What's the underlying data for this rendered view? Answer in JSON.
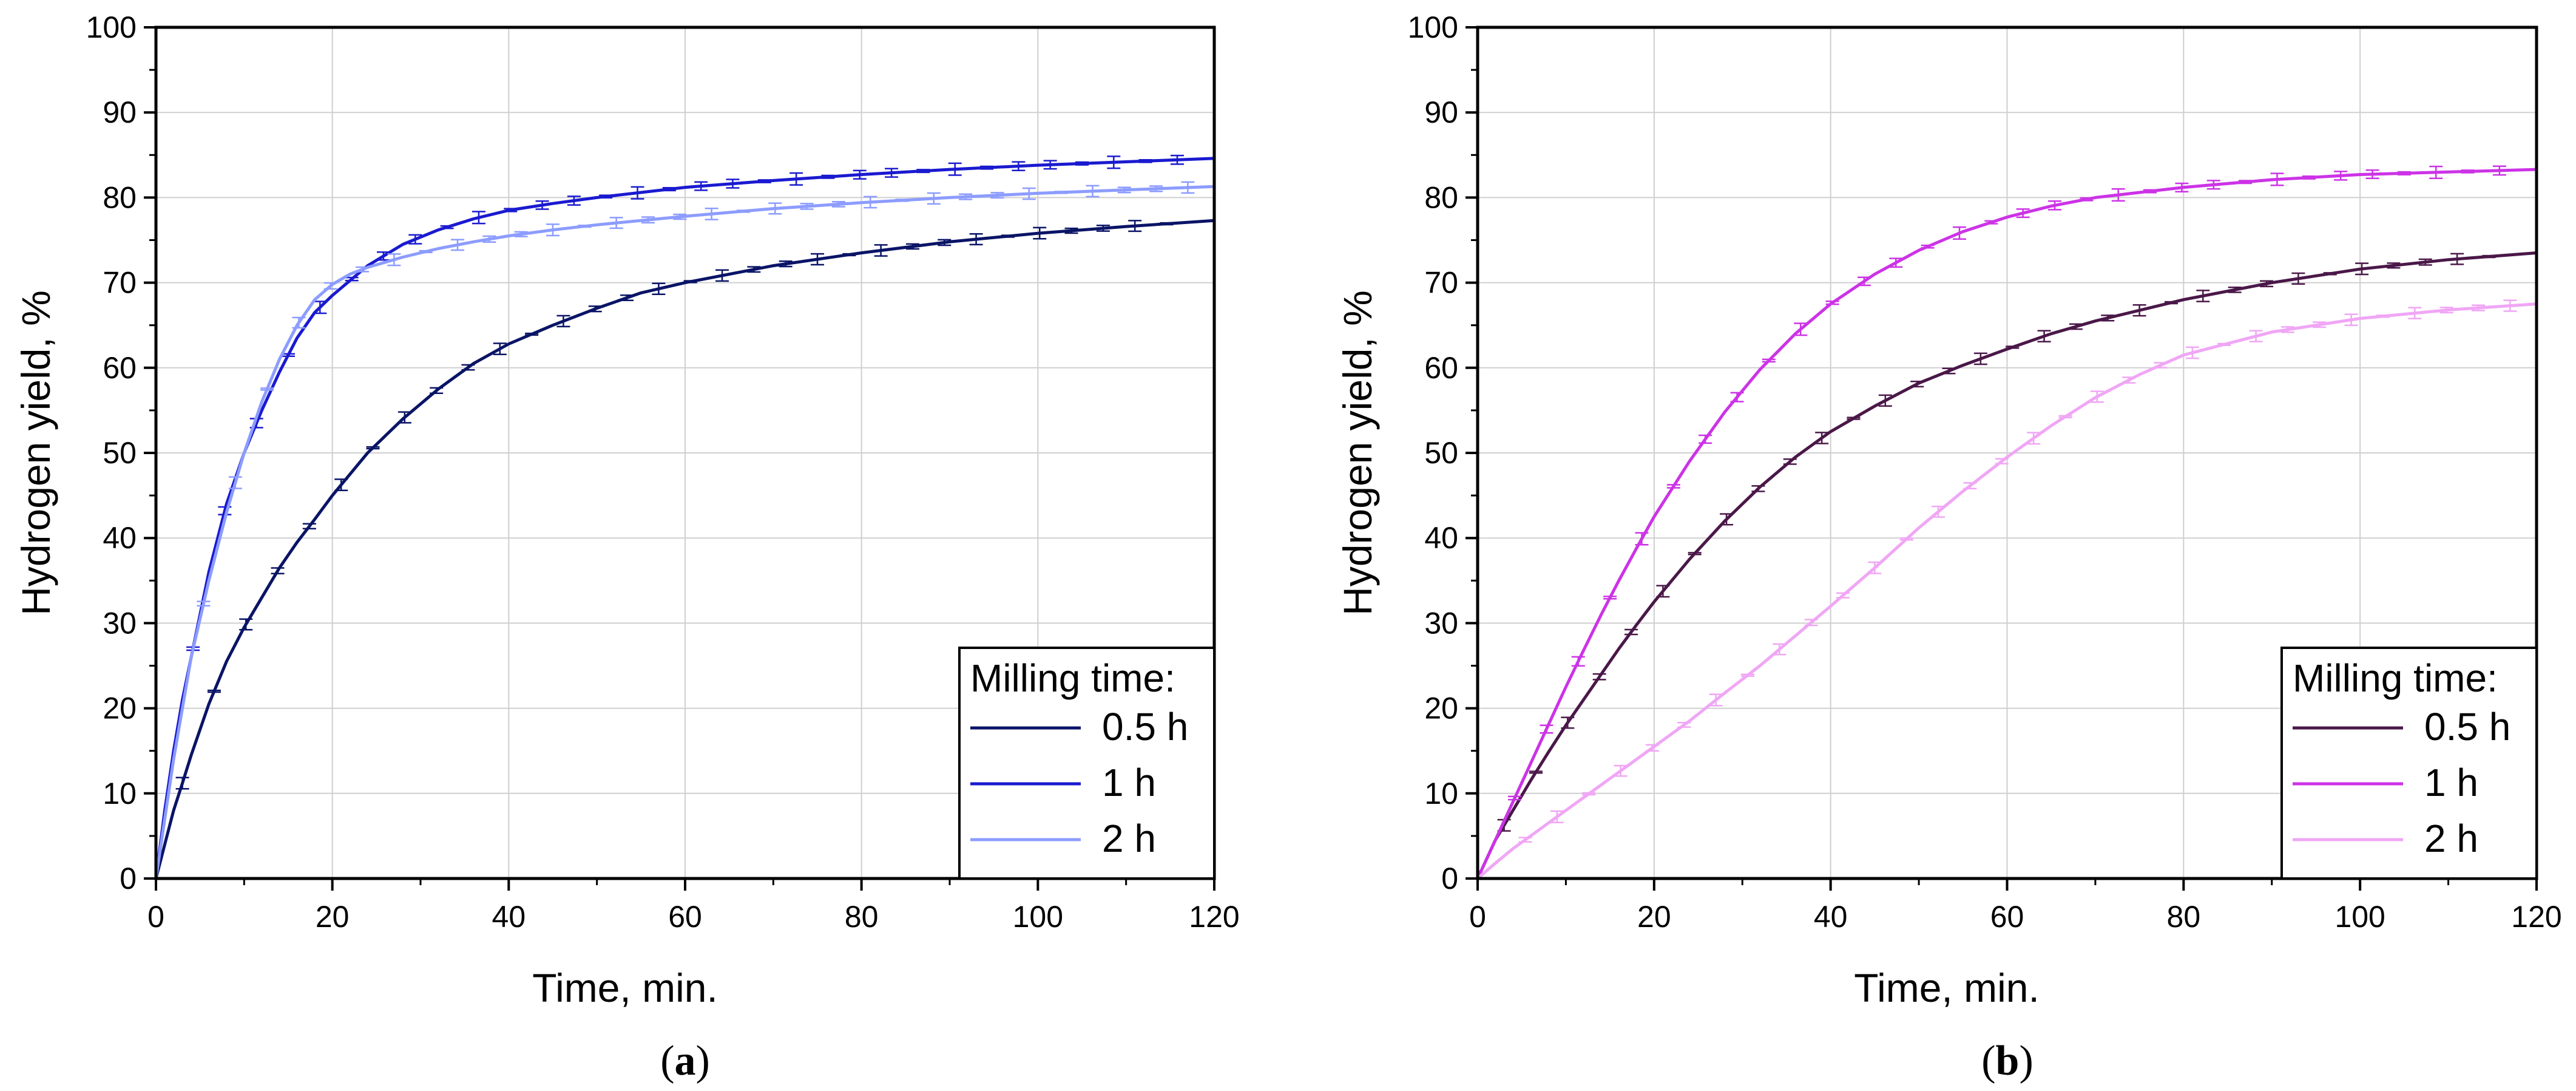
{
  "chart_data": [
    {
      "type": "line",
      "panel_label": "(a)",
      "panel_letter": "a",
      "xlabel": "Time, min.",
      "ylabel": "Hydrogen yield, %",
      "xlim": [
        0,
        120
      ],
      "ylim": [
        0,
        100
      ],
      "xticks": [
        "0",
        "20",
        "40",
        "60",
        "80",
        "100",
        "120"
      ],
      "yticks": [
        "0",
        "10",
        "20",
        "30",
        "40",
        "50",
        "60",
        "70",
        "80",
        "90",
        "100"
      ],
      "grid": true,
      "legend": {
        "title": "Milling time:",
        "placement": "bottom-right"
      },
      "series": [
        {
          "name": "0.5 h",
          "color": "#0a1466",
          "x": [
            0,
            1,
            2,
            3,
            4,
            6,
            8,
            10,
            12,
            14,
            16,
            18,
            20,
            24,
            28,
            32,
            36,
            40,
            45,
            50,
            55,
            60,
            70,
            80,
            90,
            100,
            110,
            120
          ],
          "y": [
            0,
            4,
            8,
            11.2,
            14.5,
            20.5,
            25.5,
            29.5,
            33,
            36.5,
            39.5,
            42.2,
            45,
            50,
            54,
            57.5,
            60.5,
            62.8,
            65,
            67,
            68.8,
            70,
            72,
            73.5,
            74.8,
            75.8,
            76.6,
            77.3
          ]
        },
        {
          "name": "1 h",
          "color": "#1a1ad0",
          "x": [
            0,
            1,
            2,
            3,
            4,
            6,
            8,
            10,
            12,
            14,
            16,
            18,
            20,
            24,
            28,
            32,
            36,
            40,
            45,
            50,
            60,
            70,
            80,
            90,
            100,
            110,
            120
          ],
          "y": [
            0,
            8,
            15,
            21,
            26,
            36,
            44,
            50,
            55,
            59.5,
            63.5,
            66.5,
            68.5,
            72,
            74.5,
            76.2,
            77.5,
            78.5,
            79.3,
            80,
            81.2,
            82,
            82.7,
            83.3,
            83.8,
            84.2,
            84.6
          ]
        },
        {
          "name": "2 h",
          "color": "#8c9cff",
          "x": [
            0,
            1,
            2,
            3,
            4,
            6,
            8,
            10,
            12,
            14,
            16,
            18,
            20,
            22,
            24,
            28,
            32,
            36,
            40,
            45,
            50,
            60,
            70,
            80,
            90,
            100,
            110,
            120
          ],
          "y": [
            0,
            7,
            14,
            20,
            26,
            35,
            43,
            50,
            56,
            61,
            65,
            68,
            69.8,
            71,
            71.8,
            73,
            74,
            74.8,
            75.5,
            76.2,
            76.8,
            77.8,
            78.7,
            79.4,
            80,
            80.5,
            80.9,
            81.3
          ]
        }
      ]
    },
    {
      "type": "line",
      "panel_label": "(b)",
      "panel_letter": "b",
      "xlabel": "Time, min.",
      "ylabel": "Hydrogen yield, %",
      "xlim": [
        0,
        120
      ],
      "ylim": [
        0,
        100
      ],
      "xticks": [
        "0",
        "20",
        "40",
        "60",
        "80",
        "100",
        "120"
      ],
      "yticks": [
        "0",
        "10",
        "20",
        "30",
        "40",
        "50",
        "60",
        "70",
        "80",
        "90",
        "100"
      ],
      "grid": true,
      "legend": {
        "title": "Milling time:",
        "placement": "bottom-right"
      },
      "series": [
        {
          "name": "0.5 h",
          "color": "#4a1848",
          "x": [
            0,
            2,
            4,
            6,
            8,
            10,
            12,
            14,
            16,
            18,
            20,
            24,
            28,
            32,
            36,
            40,
            45,
            50,
            55,
            60,
            65,
            70,
            80,
            90,
            100,
            110,
            120
          ],
          "y": [
            0,
            4.5,
            8,
            11.5,
            14.8,
            18,
            21,
            24,
            27,
            29.8,
            32.5,
            37.5,
            42,
            46,
            49.5,
            52.5,
            55.5,
            58.2,
            60.3,
            62.2,
            64,
            65.5,
            68,
            70,
            71.6,
            72.7,
            73.5
          ]
        },
        {
          "name": "1 h",
          "color": "#cc33e6",
          "x": [
            0,
            2,
            4,
            6,
            8,
            10,
            12,
            14,
            16,
            18,
            20,
            24,
            28,
            32,
            36,
            40,
            45,
            50,
            55,
            60,
            65,
            70,
            80,
            90,
            100,
            110,
            120
          ],
          "y": [
            0,
            4.5,
            9,
            13.5,
            18,
            22.5,
            26.8,
            31,
            35,
            38.8,
            42.5,
            49,
            54.8,
            59.8,
            64,
            67.5,
            71,
            73.8,
            76,
            77.7,
            79,
            80,
            81.2,
            82.1,
            82.7,
            83,
            83.3
          ]
        },
        {
          "name": "2 h",
          "color": "#f0a6f5",
          "x": [
            0,
            2,
            4,
            6,
            8,
            10,
            12,
            14,
            16,
            18,
            20,
            24,
            28,
            32,
            36,
            40,
            45,
            50,
            55,
            60,
            65,
            70,
            75,
            80,
            90,
            100,
            110,
            120
          ],
          "y": [
            0,
            1.8,
            3.5,
            5,
            6.5,
            8,
            9.5,
            11,
            12.5,
            14,
            15.5,
            18.5,
            21.8,
            25,
            28.5,
            32,
            36.5,
            41.2,
            45.5,
            49.5,
            53.2,
            56.5,
            59.2,
            61.5,
            64.2,
            65.8,
            66.8,
            67.5
          ]
        }
      ]
    }
  ]
}
